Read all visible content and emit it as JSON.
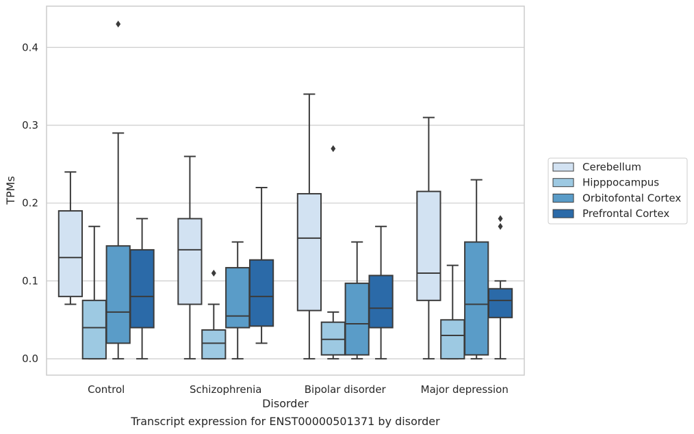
{
  "chart_data": {
    "type": "box",
    "caption": "Transcript expression for ENST00000501371 by disorder",
    "xlabel": "Disorder",
    "ylabel": "TPMs",
    "ylim": [
      -0.021,
      0.453
    ],
    "yticks": [
      0.0,
      0.1,
      0.2,
      0.3,
      0.4
    ],
    "ytick_labels": [
      "0.0",
      "0.1",
      "0.2",
      "0.3",
      "0.4"
    ],
    "grid": "horizontal",
    "legend_position": "right",
    "categories": [
      "Control",
      "Schizophrenia",
      "Bipolar disorder",
      "Major depression"
    ],
    "series": [
      {
        "name": "Cerebellum",
        "color": "#d2e2f2",
        "boxes": [
          {
            "whisker_low": 0.07,
            "q1": 0.08,
            "median": 0.13,
            "q3": 0.19,
            "whisker_high": 0.24,
            "outliers": []
          },
          {
            "whisker_low": 0.0,
            "q1": 0.07,
            "median": 0.14,
            "q3": 0.18,
            "whisker_high": 0.26,
            "outliers": []
          },
          {
            "whisker_low": 0.0,
            "q1": 0.062,
            "median": 0.155,
            "q3": 0.212,
            "whisker_high": 0.34,
            "outliers": []
          },
          {
            "whisker_low": 0.0,
            "q1": 0.075,
            "median": 0.11,
            "q3": 0.215,
            "whisker_high": 0.31,
            "outliers": []
          }
        ]
      },
      {
        "name": "Hipppocampus",
        "color": "#9dc9e2",
        "boxes": [
          {
            "whisker_low": 0.0,
            "q1": 0.0,
            "median": 0.04,
            "q3": 0.075,
            "whisker_high": 0.17,
            "outliers": []
          },
          {
            "whisker_low": 0.0,
            "q1": 0.0,
            "median": 0.02,
            "q3": 0.037,
            "whisker_high": 0.07,
            "outliers": [
              0.11
            ]
          },
          {
            "whisker_low": 0.0,
            "q1": 0.005,
            "median": 0.025,
            "q3": 0.047,
            "whisker_high": 0.06,
            "outliers": [
              0.27
            ]
          },
          {
            "whisker_low": 0.0,
            "q1": 0.0,
            "median": 0.03,
            "q3": 0.05,
            "whisker_high": 0.12,
            "outliers": []
          }
        ]
      },
      {
        "name": "Orbitofontal Cortex",
        "color": "#5a9cc8",
        "boxes": [
          {
            "whisker_low": 0.0,
            "q1": 0.02,
            "median": 0.06,
            "q3": 0.145,
            "whisker_high": 0.29,
            "outliers": [
              0.43
            ]
          },
          {
            "whisker_low": 0.0,
            "q1": 0.04,
            "median": 0.055,
            "q3": 0.117,
            "whisker_high": 0.15,
            "outliers": []
          },
          {
            "whisker_low": 0.0,
            "q1": 0.005,
            "median": 0.045,
            "q3": 0.097,
            "whisker_high": 0.15,
            "outliers": []
          },
          {
            "whisker_low": 0.0,
            "q1": 0.005,
            "median": 0.07,
            "q3": 0.15,
            "whisker_high": 0.23,
            "outliers": []
          }
        ]
      },
      {
        "name": "Prefrontal Cortex",
        "color": "#2b6aa8",
        "boxes": [
          {
            "whisker_low": 0.0,
            "q1": 0.04,
            "median": 0.08,
            "q3": 0.14,
            "whisker_high": 0.18,
            "outliers": []
          },
          {
            "whisker_low": 0.02,
            "q1": 0.042,
            "median": 0.08,
            "q3": 0.127,
            "whisker_high": 0.22,
            "outliers": []
          },
          {
            "whisker_low": 0.0,
            "q1": 0.04,
            "median": 0.065,
            "q3": 0.107,
            "whisker_high": 0.17,
            "outliers": []
          },
          {
            "whisker_low": 0.0,
            "q1": 0.053,
            "median": 0.075,
            "q3": 0.09,
            "whisker_high": 0.1,
            "outliers": [
              0.17,
              0.18
            ]
          }
        ]
      }
    ]
  }
}
